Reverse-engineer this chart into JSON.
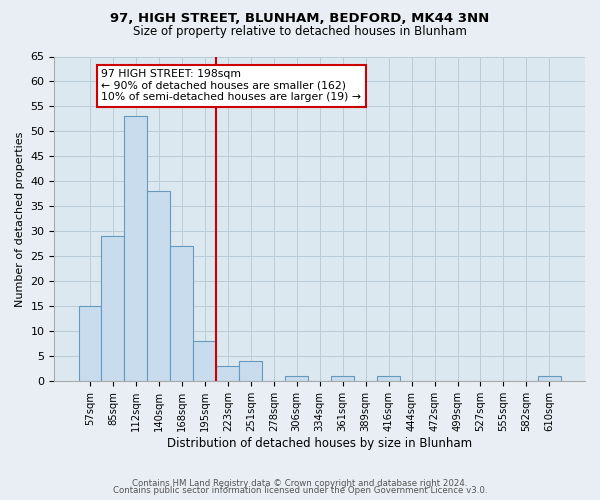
{
  "title": "97, HIGH STREET, BLUNHAM, BEDFORD, MK44 3NN",
  "subtitle": "Size of property relative to detached houses in Blunham",
  "xlabel": "Distribution of detached houses by size in Blunham",
  "ylabel": "Number of detached properties",
  "bin_labels": [
    "57sqm",
    "85sqm",
    "112sqm",
    "140sqm",
    "168sqm",
    "195sqm",
    "223sqm",
    "251sqm",
    "278sqm",
    "306sqm",
    "334sqm",
    "361sqm",
    "389sqm",
    "416sqm",
    "444sqm",
    "472sqm",
    "499sqm",
    "527sqm",
    "555sqm",
    "582sqm",
    "610sqm"
  ],
  "bar_heights": [
    15,
    29,
    53,
    38,
    27,
    8,
    3,
    4,
    0,
    1,
    0,
    1,
    0,
    1,
    0,
    0,
    0,
    0,
    0,
    0,
    1
  ],
  "bar_color": "#c8dcee",
  "bar_edge_color": "#6699bb",
  "vline_x": 5.5,
  "vline_color": "#cc0000",
  "ylim": [
    0,
    65
  ],
  "yticks": [
    0,
    5,
    10,
    15,
    20,
    25,
    30,
    35,
    40,
    45,
    50,
    55,
    60,
    65
  ],
  "annotation_title": "97 HIGH STREET: 198sqm",
  "annotation_line1": "← 90% of detached houses are smaller (162)",
  "annotation_line2": "10% of semi-detached houses are larger (19) →",
  "annotation_box_color": "#ffffff",
  "annotation_box_edge": "#cc0000",
  "footer_line1": "Contains HM Land Registry data © Crown copyright and database right 2024.",
  "footer_line2": "Contains public sector information licensed under the Open Government Licence v3.0.",
  "background_color": "#e8eef4",
  "plot_bg_color": "#dce8f0",
  "grid_color": "#b8ccd8"
}
